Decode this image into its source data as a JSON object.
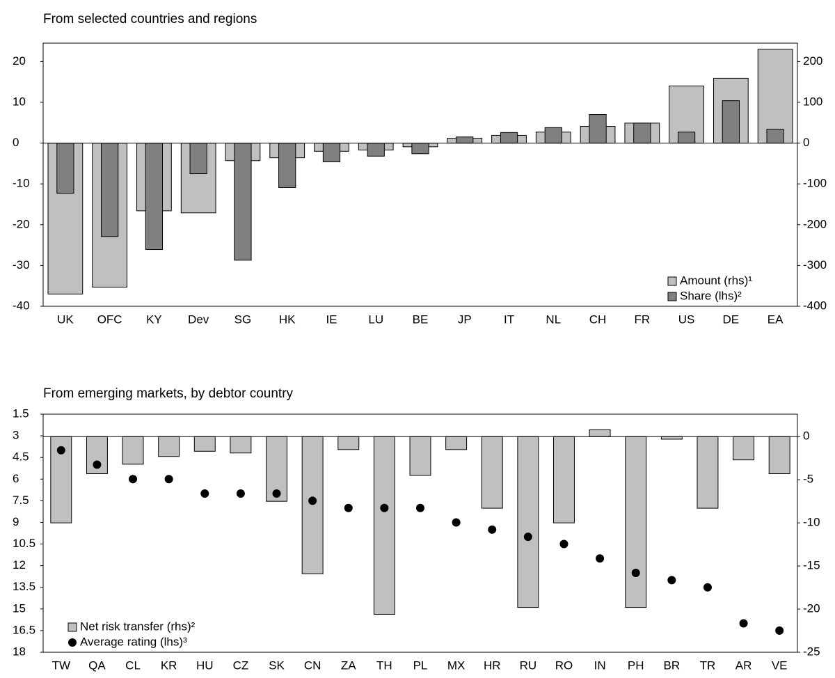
{
  "chart_data": [
    {
      "type": "bar",
      "title": "From selected countries and regions",
      "categories": [
        "UK",
        "OFC",
        "KY",
        "Dev",
        "SG",
        "HK",
        "IE",
        "LU",
        "BE",
        "JP",
        "IT",
        "NL",
        "CH",
        "FR",
        "US",
        "DE",
        "EA"
      ],
      "series": [
        {
          "name": "Amount (rhs)¹",
          "color": "#c0c0c0",
          "axis": "y2",
          "values": [
            -370,
            -353,
            -166,
            -171,
            -43,
            -36,
            -20,
            -17,
            -9,
            12,
            19,
            27,
            41,
            49,
            140,
            159,
            230
          ]
        },
        {
          "name": "Share (lhs)²",
          "color": "#808080",
          "axis": "y",
          "values": [
            -12.3,
            -22.9,
            -26.1,
            -7.5,
            -28.7,
            -10.9,
            -4.6,
            -3.2,
            -2.6,
            1.5,
            2.6,
            3.8,
            7.0,
            4.9,
            2.7,
            10.4,
            3.4
          ]
        }
      ],
      "ylim": [
        -40,
        24.5
      ],
      "yticks": [
        -40,
        -30,
        -20,
        -10,
        0,
        10,
        20
      ],
      "y2lim": [
        -400,
        245
      ],
      "y2ticks": [
        -400,
        -300,
        -200,
        -100,
        0,
        100,
        200
      ],
      "legend": "lower right"
    },
    {
      "type": "bar",
      "title": "From emerging markets, by debtor country",
      "categories": [
        "TW",
        "QA",
        "CL",
        "KR",
        "HU",
        "CZ",
        "SK",
        "CN",
        "ZA",
        "TH",
        "PL",
        "MX",
        "HR",
        "RU",
        "RO",
        "IN",
        "PH",
        "BR",
        "TR",
        "AR",
        "VE"
      ],
      "series": [
        {
          "name": "Net risk transfer (rhs)²",
          "color": "#c0c0c0",
          "axis": "y2",
          "values": [
            -10.0,
            -4.3,
            -3.2,
            -2.3,
            -1.7,
            -1.9,
            -7.5,
            -15.9,
            -1.5,
            -20.6,
            -4.5,
            -1.5,
            -8.3,
            -19.8,
            -10.0,
            0.8,
            -19.8,
            -0.3,
            -8.3,
            -2.7,
            -4.3
          ]
        },
        {
          "name": "Average rating (lhs)³",
          "color": "#000000",
          "axis": "y",
          "type": "scatter",
          "values": [
            4.0,
            5.0,
            6.0,
            6.0,
            7.0,
            7.0,
            7.0,
            7.5,
            8.0,
            8.0,
            8.0,
            9.0,
            9.5,
            10.0,
            10.5,
            11.5,
            12.5,
            13.0,
            13.5,
            16.0,
            16.5
          ]
        }
      ],
      "ylim": [
        18,
        1.5
      ],
      "yticks": [
        1.5,
        3,
        4.5,
        6,
        7.5,
        9,
        10.5,
        12,
        13.5,
        15,
        16.5,
        18
      ],
      "y2lim": [
        -25,
        2.6
      ],
      "y2ticks": [
        -25,
        -20,
        -15,
        -10,
        -5,
        0
      ],
      "legend": "lower left"
    }
  ]
}
